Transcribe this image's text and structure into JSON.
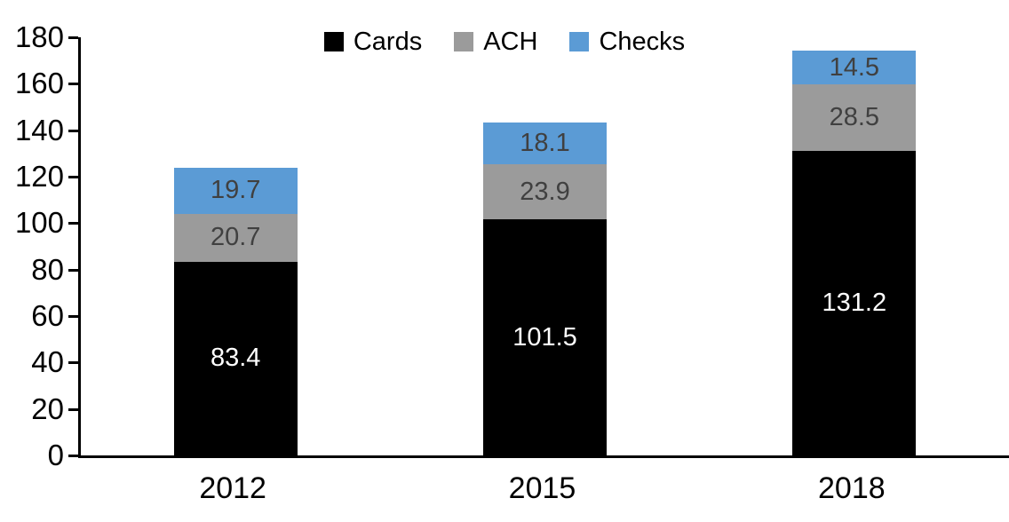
{
  "chart_data": {
    "type": "bar",
    "stacked": true,
    "title": "",
    "xlabel": "",
    "ylabel": "",
    "categories": [
      "2012",
      "2015",
      "2018"
    ],
    "series": [
      {
        "name": "Cards",
        "color": "#000000",
        "label_color": "#ffffff",
        "values": [
          83.4,
          101.5,
          131.2
        ]
      },
      {
        "name": "ACH",
        "color": "#9b9b9b",
        "label_color": "#404040",
        "values": [
          20.7,
          23.9,
          28.5
        ]
      },
      {
        "name": "Checks",
        "color": "#5b9bd5",
        "label_color": "#404040",
        "values": [
          19.7,
          18.1,
          14.5
        ]
      }
    ],
    "ylim": [
      0,
      180
    ],
    "ytick_step": 20,
    "grid": false,
    "legend_position": "top-center",
    "bar_width_ratio": 0.4,
    "data_labels": "centered-one-decimal"
  }
}
